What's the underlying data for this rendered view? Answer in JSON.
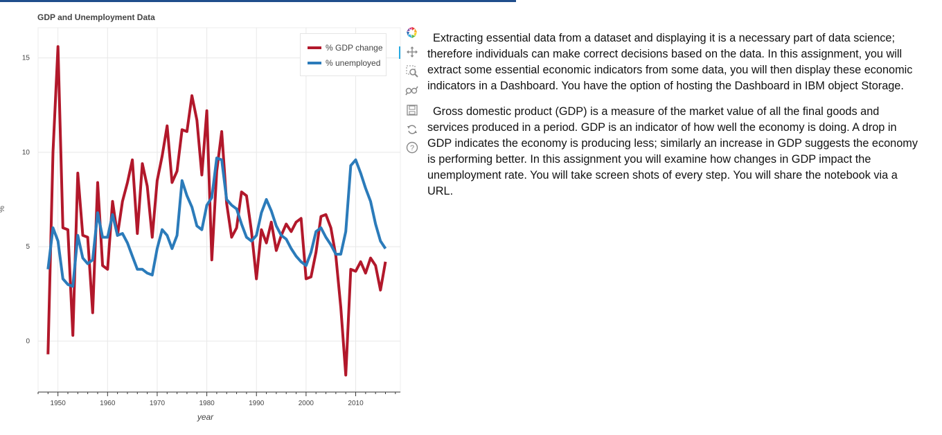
{
  "chart_data": {
    "type": "line",
    "title": "GDP and Unemployment Data",
    "xlabel": "year",
    "ylabel": "%",
    "xlim": [
      1946,
      2019
    ],
    "ylim": [
      -2.7,
      16.6
    ],
    "x_ticks": [
      1950,
      1960,
      1970,
      1980,
      1990,
      2000,
      2010
    ],
    "y_ticks": [
      0,
      5,
      10,
      15
    ],
    "grid": true,
    "legend_position": "top-right",
    "x": [
      1948,
      1949,
      1950,
      1951,
      1952,
      1953,
      1954,
      1955,
      1956,
      1957,
      1958,
      1959,
      1960,
      1961,
      1962,
      1963,
      1964,
      1965,
      1966,
      1967,
      1968,
      1969,
      1970,
      1971,
      1972,
      1973,
      1974,
      1975,
      1976,
      1977,
      1978,
      1979,
      1980,
      1981,
      1982,
      1983,
      1984,
      1985,
      1986,
      1987,
      1988,
      1989,
      1990,
      1991,
      1992,
      1993,
      1994,
      1995,
      1996,
      1997,
      1998,
      1999,
      2000,
      2001,
      2002,
      2003,
      2004,
      2005,
      2006,
      2007,
      2008,
      2009,
      2010,
      2011,
      2012,
      2013,
      2014,
      2015,
      2016
    ],
    "series": [
      {
        "name": "% GDP change",
        "color": "#b2182b",
        "values": [
          -0.7,
          10.0,
          15.6,
          6.0,
          5.9,
          0.3,
          8.9,
          5.6,
          5.5,
          1.5,
          8.4,
          4.0,
          3.8,
          7.4,
          5.6,
          7.4,
          8.4,
          9.6,
          5.7,
          9.4,
          8.2,
          5.5,
          8.5,
          9.8,
          11.4,
          8.4,
          9.0,
          11.2,
          11.1,
          13.0,
          11.7,
          8.8,
          12.2,
          4.3,
          9.0,
          11.1,
          7.3,
          5.5,
          6.0,
          7.9,
          7.7,
          5.8,
          3.3,
          5.9,
          5.2,
          6.3,
          4.8,
          5.6,
          6.2,
          5.8,
          6.3,
          6.5,
          3.3,
          3.4,
          4.7,
          6.6,
          6.7,
          6.0,
          4.5,
          1.8,
          -1.8,
          3.8,
          3.7,
          4.2,
          3.6,
          4.4,
          4.0,
          2.7,
          4.2
        ]
      },
      {
        "name": "% unemployed",
        "color": "#2b7bba",
        "values": [
          3.8,
          6.0,
          5.3,
          3.3,
          3.0,
          2.9,
          5.6,
          4.4,
          4.1,
          4.3,
          6.8,
          5.5,
          5.5,
          6.7,
          5.6,
          5.7,
          5.2,
          4.5,
          3.8,
          3.8,
          3.6,
          3.5,
          4.9,
          5.9,
          5.6,
          4.9,
          5.6,
          8.5,
          7.7,
          7.1,
          6.1,
          5.9,
          7.2,
          7.6,
          9.7,
          9.6,
          7.5,
          7.2,
          7.0,
          6.2,
          5.5,
          5.3,
          5.6,
          6.8,
          7.5,
          6.9,
          6.1,
          5.6,
          5.4,
          4.9,
          4.5,
          4.2,
          4.0,
          4.7,
          5.8,
          6.0,
          5.5,
          5.1,
          4.6,
          4.6,
          5.8,
          9.3,
          9.6,
          8.9,
          8.1,
          7.4,
          6.2,
          5.3,
          4.9
        ]
      }
    ]
  },
  "toolbar": {
    "tools": [
      "bokeh-logo-icon",
      "pan-icon",
      "box-zoom-icon",
      "wheel-zoom-icon",
      "save-icon",
      "reset-icon",
      "help-icon"
    ]
  },
  "content": {
    "paragraph1": "Extracting essential data from a dataset and displaying it is a necessary part of data science; therefore individuals can make correct decisions based on the data. In this assignment, you will extract some essential economic indicators from some data, you will then display these economic indicators in a Dashboard. You have the option of hosting the Dashboard in IBM object Storage.",
    "paragraph2": "Gross domestic product (GDP) is a measure of the market value of all the final goods and services produced in a period. GDP is an indicator of how well the economy is doing. A drop in GDP indicates the economy is producing less; similarly an increase in GDP suggests the economy is performing better. In this assignment you will examine how changes in GDP impact the unemployment rate. You will take screen shots of every step. You will share the notebook via a URL."
  }
}
